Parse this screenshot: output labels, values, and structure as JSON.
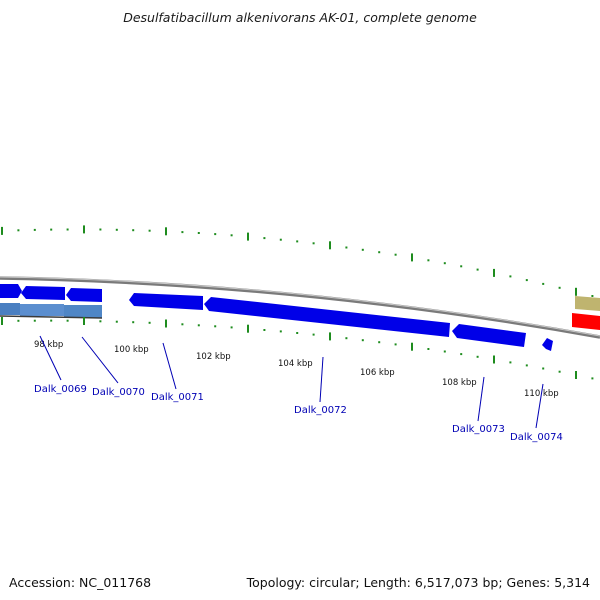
{
  "title": "Desulfatibacillum alkenivorans AK-01, complete genome",
  "footer": {
    "accession": "Accession: NC_011768",
    "stats": "Topology: circular; Length: 6,517,073 bp; Genes: 5,314"
  },
  "colors": {
    "forward_gene": "#0000e8",
    "reverse_gene": "#4a7fc1",
    "other_gene_yellow": "#bfb46f",
    "other_gene_red": "#ff0000",
    "backbone": "#808080",
    "tick": "#1e8c1e",
    "gene_label": "#0000b4"
  },
  "kbp_labels": [
    "98 kbp",
    "100 kbp",
    "102 kbp",
    "104 kbp",
    "106 kbp",
    "108 kbp",
    "110 kbp"
  ],
  "gene_labels": [
    "Dalk_0069",
    "Dalk_0070",
    "Dalk_0071",
    "Dalk_0072",
    "Dalk_0073",
    "Dalk_0074"
  ]
}
